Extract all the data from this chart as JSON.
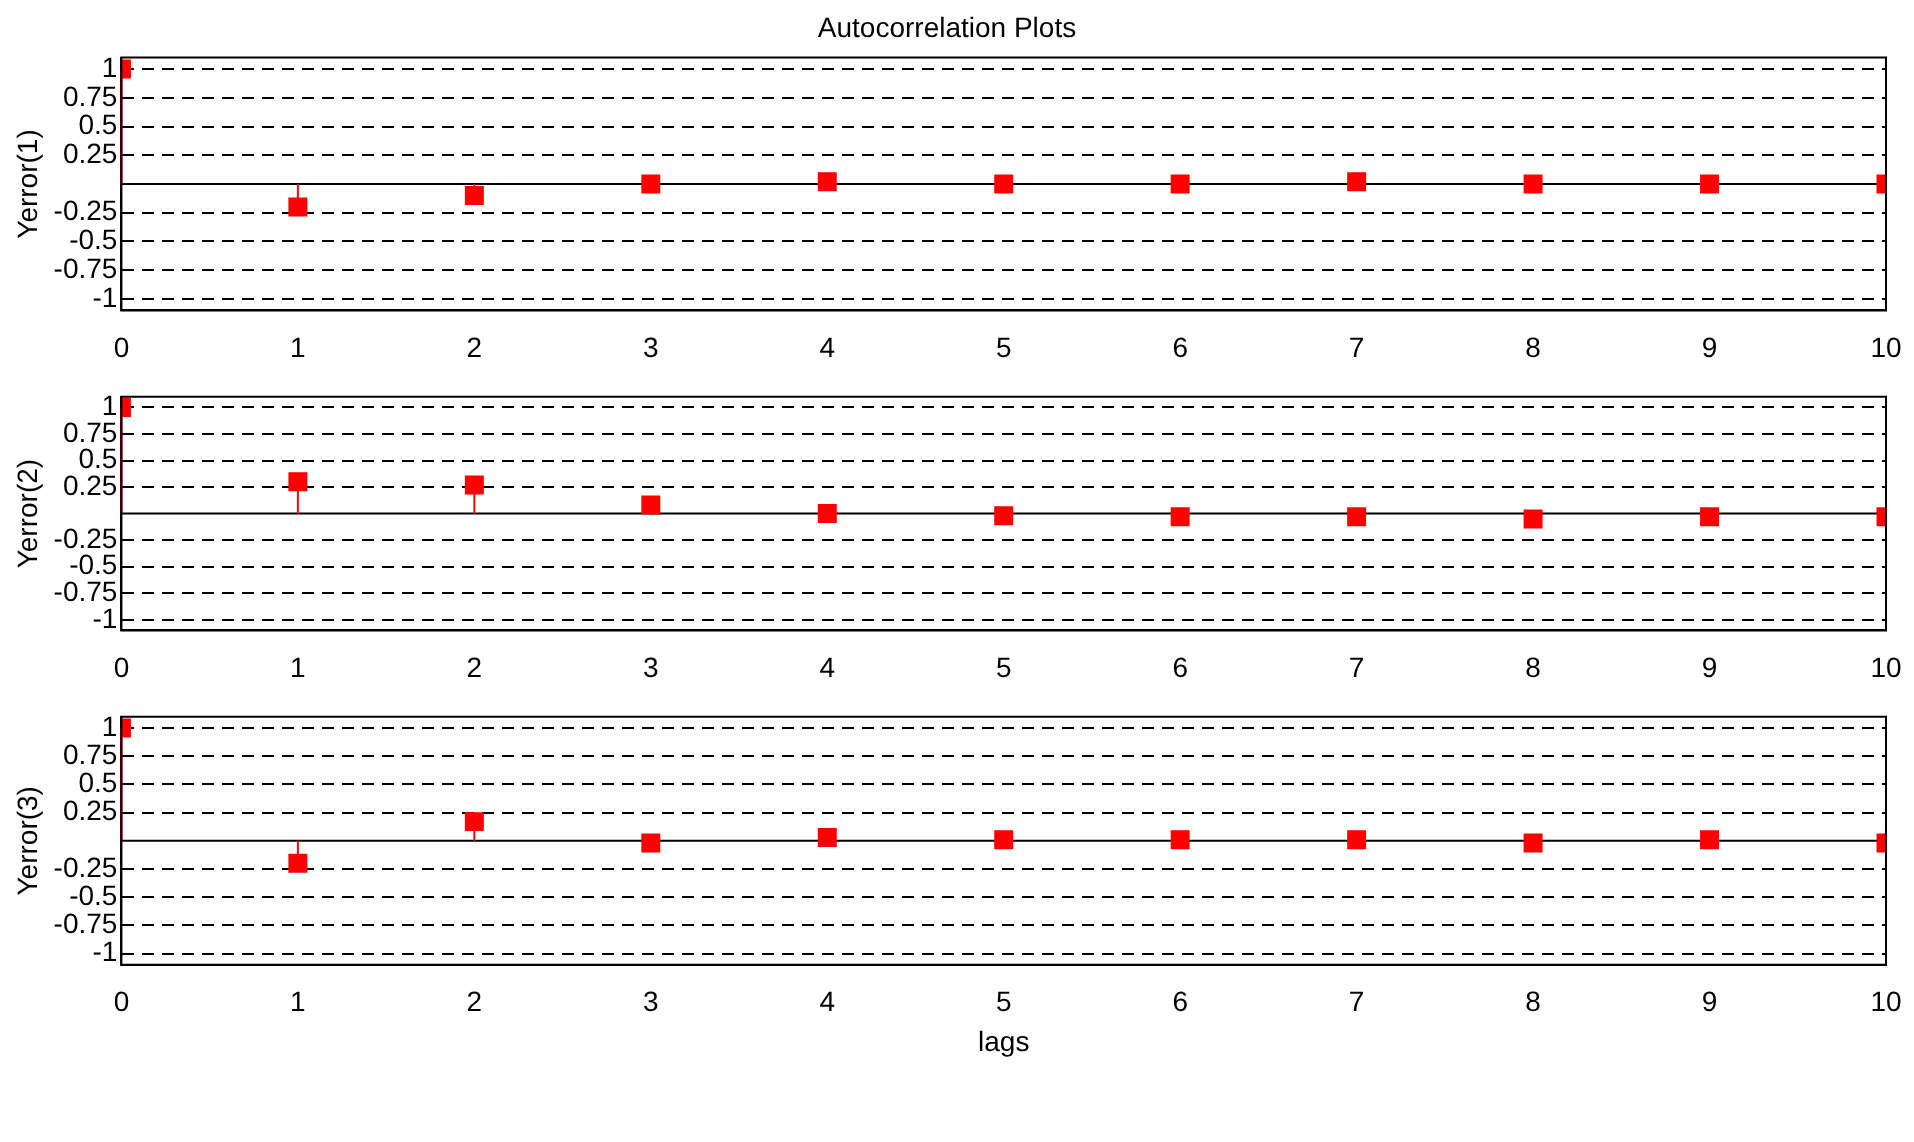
{
  "chart_data": [
    {
      "type": "lollipop",
      "title": "Autocorrelation Plots",
      "ylabel": "Yerror(1)",
      "x": [
        0,
        1,
        2,
        3,
        4,
        5,
        6,
        7,
        8,
        9,
        10
      ],
      "series": [
        {
          "color": "#ff0000",
          "values": [
            1,
            -0.2,
            -0.1,
            0,
            0.02,
            0,
            0,
            0.02,
            0,
            0,
            0
          ]
        }
      ],
      "xlim": [
        0,
        10
      ],
      "xticks": [
        0,
        1,
        2,
        3,
        4,
        5,
        6,
        7,
        8,
        9,
        10
      ],
      "ylim": [
        -1.1,
        1.1
      ],
      "yticks": [
        -1,
        -0.75,
        -0.5,
        -0.25,
        0.25,
        0.5,
        0.75,
        1
      ],
      "grid": "y",
      "marker": "square",
      "ref_lines": [
        {
          "axis": "y",
          "value": 0,
          "color": "#000000"
        }
      ]
    },
    {
      "type": "lollipop",
      "ylabel": "Yerror(2)",
      "x": [
        0,
        1,
        2,
        3,
        4,
        5,
        6,
        7,
        8,
        9,
        10
      ],
      "series": [
        {
          "color": "#ff0000",
          "values": [
            1,
            0.3,
            0.27,
            0.08,
            0,
            -0.02,
            -0.03,
            -0.03,
            -0.05,
            -0.03,
            -0.03
          ]
        }
      ],
      "xlim": [
        0,
        10
      ],
      "xticks": [
        0,
        1,
        2,
        3,
        4,
        5,
        6,
        7,
        8,
        9,
        10
      ],
      "ylim": [
        -1.1,
        1.1
      ],
      "yticks": [
        -1,
        -0.75,
        -0.5,
        -0.25,
        0.25,
        0.5,
        0.75,
        1
      ],
      "grid": "y",
      "marker": "square",
      "ref_lines": [
        {
          "axis": "y",
          "value": 0,
          "color": "#000000"
        }
      ]
    },
    {
      "type": "lollipop",
      "ylabel": "Yerror(3)",
      "xlabel": "lags",
      "x": [
        0,
        1,
        2,
        3,
        4,
        5,
        6,
        7,
        8,
        9,
        10
      ],
      "series": [
        {
          "color": "#ff0000",
          "values": [
            1,
            -0.2,
            0.17,
            -0.02,
            0.03,
            0.01,
            0.01,
            0.01,
            -0.02,
            0.01,
            -0.02
          ]
        }
      ],
      "xlim": [
        0,
        10
      ],
      "xticks": [
        0,
        1,
        2,
        3,
        4,
        5,
        6,
        7,
        8,
        9,
        10
      ],
      "ylim": [
        -1.1,
        1.1
      ],
      "yticks": [
        -1,
        -0.75,
        -0.5,
        -0.25,
        0.25,
        0.5,
        0.75,
        1
      ],
      "grid": "y",
      "marker": "square",
      "ref_lines": [
        {
          "axis": "y",
          "value": 0,
          "color": "#000000"
        }
      ]
    }
  ]
}
